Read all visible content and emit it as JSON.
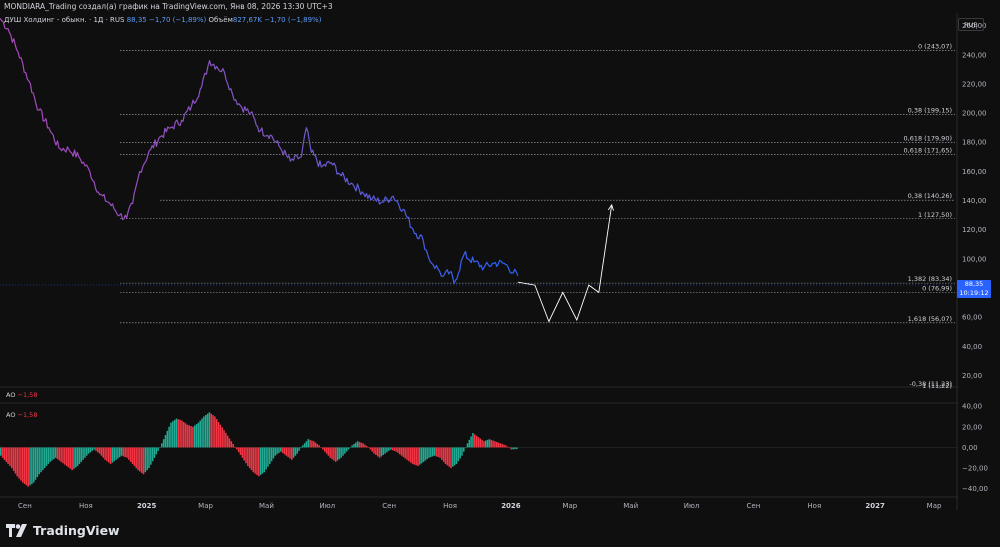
{
  "header": {
    "title": "MONDIARA_Trading создал(а) график на TradingView.com, Янв 08, 2026 13:30 UTC+3"
  },
  "legend": {
    "symbol": "ДУШ Холдинг - обыкн. · 1Д · RUS",
    "price": "88,35",
    "change": "−1,70 (−1,89%)",
    "volume_label": "Объём",
    "volume": "827,67K",
    "volume_change": "−1,70 (−1,89%)"
  },
  "currency": "RUB",
  "price_tag": {
    "price": "88,35",
    "countdown": "10:19:12"
  },
  "ao_labels": [
    {
      "name": "AO",
      "value": "−1,58"
    },
    {
      "name": "AO",
      "value": "−1,58"
    }
  ],
  "branding": {
    "logo_text": "TradingView"
  },
  "colors": {
    "background": "#0f0f0f",
    "price_line_start": "#9c27b0",
    "price_line_end": "#2962ff",
    "forecast": "#ffffff",
    "fib_line": "#b2b5be",
    "ao_up": "#22ab94",
    "ao_down": "#f23645",
    "accent": "#2962ff"
  },
  "chart_data": [
    {
      "type": "line",
      "title": "",
      "y_axis_ticks": [
        "260,00",
        "240,00",
        "220,00",
        "200,00",
        "180,00",
        "160,00",
        "140,00",
        "120,00",
        "100,00",
        "80,00",
        "60,00",
        "40,00",
        "20,00"
      ],
      "ylim": [
        10,
        268
      ],
      "x_axis_ticks": [
        "Сен",
        "Ноя",
        "2025",
        "Мар",
        "Май",
        "Июл",
        "Сен",
        "Ноя",
        "2026",
        "Мар",
        "Май",
        "Июл",
        "Сен",
        "Ноя",
        "2027",
        "Мар"
      ],
      "x_tick_dates": [
        "2024-09-01",
        "2024-11-01",
        "2025-01-01",
        "2025-03-01",
        "2025-05-01",
        "2025-07-01",
        "2025-09-01",
        "2025-11-01",
        "2026-01-01",
        "2026-03-01",
        "2026-05-01",
        "2026-07-01",
        "2026-09-01",
        "2026-11-01",
        "2027-01-01",
        "2027-03-01"
      ],
      "xlim": [
        "2024-08-07",
        "2027-03-25"
      ],
      "series": [
        {
          "x": [
            "2024-08-07",
            "2024-08-15",
            "2024-08-25",
            "2024-09-05",
            "2024-09-15",
            "2024-09-25",
            "2024-10-05",
            "2024-10-15",
            "2024-10-25",
            "2024-11-05",
            "2024-11-15",
            "2024-11-25",
            "2024-12-05",
            "2024-12-12",
            "2024-12-18",
            "2024-12-25",
            "2025-01-05",
            "2025-01-15",
            "2025-01-25",
            "2025-02-05",
            "2025-02-15",
            "2025-02-25",
            "2025-03-05",
            "2025-03-12",
            "2025-03-20",
            "2025-03-28",
            "2025-04-05",
            "2025-04-15",
            "2025-04-25",
            "2025-05-05",
            "2025-05-15",
            "2025-05-25",
            "2025-06-05",
            "2025-06-10",
            "2025-06-15",
            "2025-06-25",
            "2025-07-05",
            "2025-07-15",
            "2025-07-25",
            "2025-08-05",
            "2025-08-15",
            "2025-08-25",
            "2025-09-05",
            "2025-09-15",
            "2025-09-25",
            "2025-10-05",
            "2025-10-10",
            "2025-10-15",
            "2025-10-20",
            "2025-10-25",
            "2025-11-01",
            "2025-11-05",
            "2025-11-15",
            "2025-11-25",
            "2025-12-05",
            "2025-12-15",
            "2025-12-25",
            "2026-01-08"
          ],
          "y": [
            265,
            258,
            242,
            222,
            202,
            190,
            176,
            175,
            170,
            160,
            144,
            138,
            130,
            128,
            138,
            160,
            175,
            184,
            190,
            195,
            205,
            218,
            236,
            232,
            228,
            213,
            205,
            200,
            188,
            185,
            176,
            167,
            170,
            190,
            173,
            163,
            166,
            157,
            152,
            146,
            141,
            139,
            143,
            134,
            120,
            113,
            102,
            96,
            93,
            88,
            91,
            83,
            103,
            98,
            94,
            97,
            97,
            88.35
          ]
        }
      ],
      "forecast": {
        "x": [
          "2026-01-08",
          "2026-01-25",
          "2026-02-08",
          "2026-02-22",
          "2026-03-08",
          "2026-03-20",
          "2026-03-30",
          "2026-04-12"
        ],
        "y": [
          84,
          82,
          57,
          77,
          58,
          82,
          77,
          137
        ]
      },
      "fib_levels": [
        {
          "label": "0 (243,07)",
          "value": 243.07
        },
        {
          "label": "0,38 (199,15)",
          "value": 199.15
        },
        {
          "label": "0,618 (179,90)",
          "value": 179.9
        },
        {
          "label": "0,618 (171,65)",
          "value": 171.65
        },
        {
          "label": "0,38 (140,26)",
          "value": 140.26
        },
        {
          "label": "1 (127,50)",
          "value": 127.5
        },
        {
          "label": "1,382 (83,34)",
          "value": 83.34
        },
        {
          "label": "0 (76,99)",
          "value": 76.99
        },
        {
          "label": "1,618 (56,07)",
          "value": 56.07
        },
        {
          "label": "-0,38 (11,23)",
          "value": 11.23
        },
        {
          "label": "1 (11,22)",
          "value": 11.22
        }
      ]
    },
    {
      "type": "bar",
      "title": "AO",
      "y_axis_ticks": [
        "40,00",
        "20,00",
        "0,00",
        "−20,00",
        "−40,00"
      ],
      "ylim": [
        -48,
        44
      ],
      "x_start": "2024-08-07",
      "x_end": "2026-01-08",
      "values": [
        -8,
        -14,
        -20,
        -28,
        -34,
        -38,
        -34,
        -26,
        -20,
        -14,
        -10,
        -14,
        -18,
        -22,
        -18,
        -12,
        -6,
        -2,
        -6,
        -12,
        -16,
        -12,
        -8,
        -10,
        -16,
        -22,
        -26,
        -20,
        -10,
        0,
        12,
        24,
        28,
        26,
        22,
        20,
        24,
        30,
        34,
        30,
        22,
        14,
        6,
        -2,
        -10,
        -18,
        -24,
        -28,
        -24,
        -16,
        -8,
        -4,
        -8,
        -12,
        -6,
        2,
        8,
        6,
        2,
        -4,
        -10,
        -14,
        -10,
        -4,
        2,
        6,
        4,
        0,
        -6,
        -10,
        -6,
        -2,
        -4,
        -8,
        -12,
        -16,
        -18,
        -14,
        -10,
        -8,
        -10,
        -16,
        -20,
        -16,
        -8,
        4,
        14,
        10,
        6,
        8,
        6,
        4,
        2,
        -2,
        -1.58
      ]
    }
  ]
}
